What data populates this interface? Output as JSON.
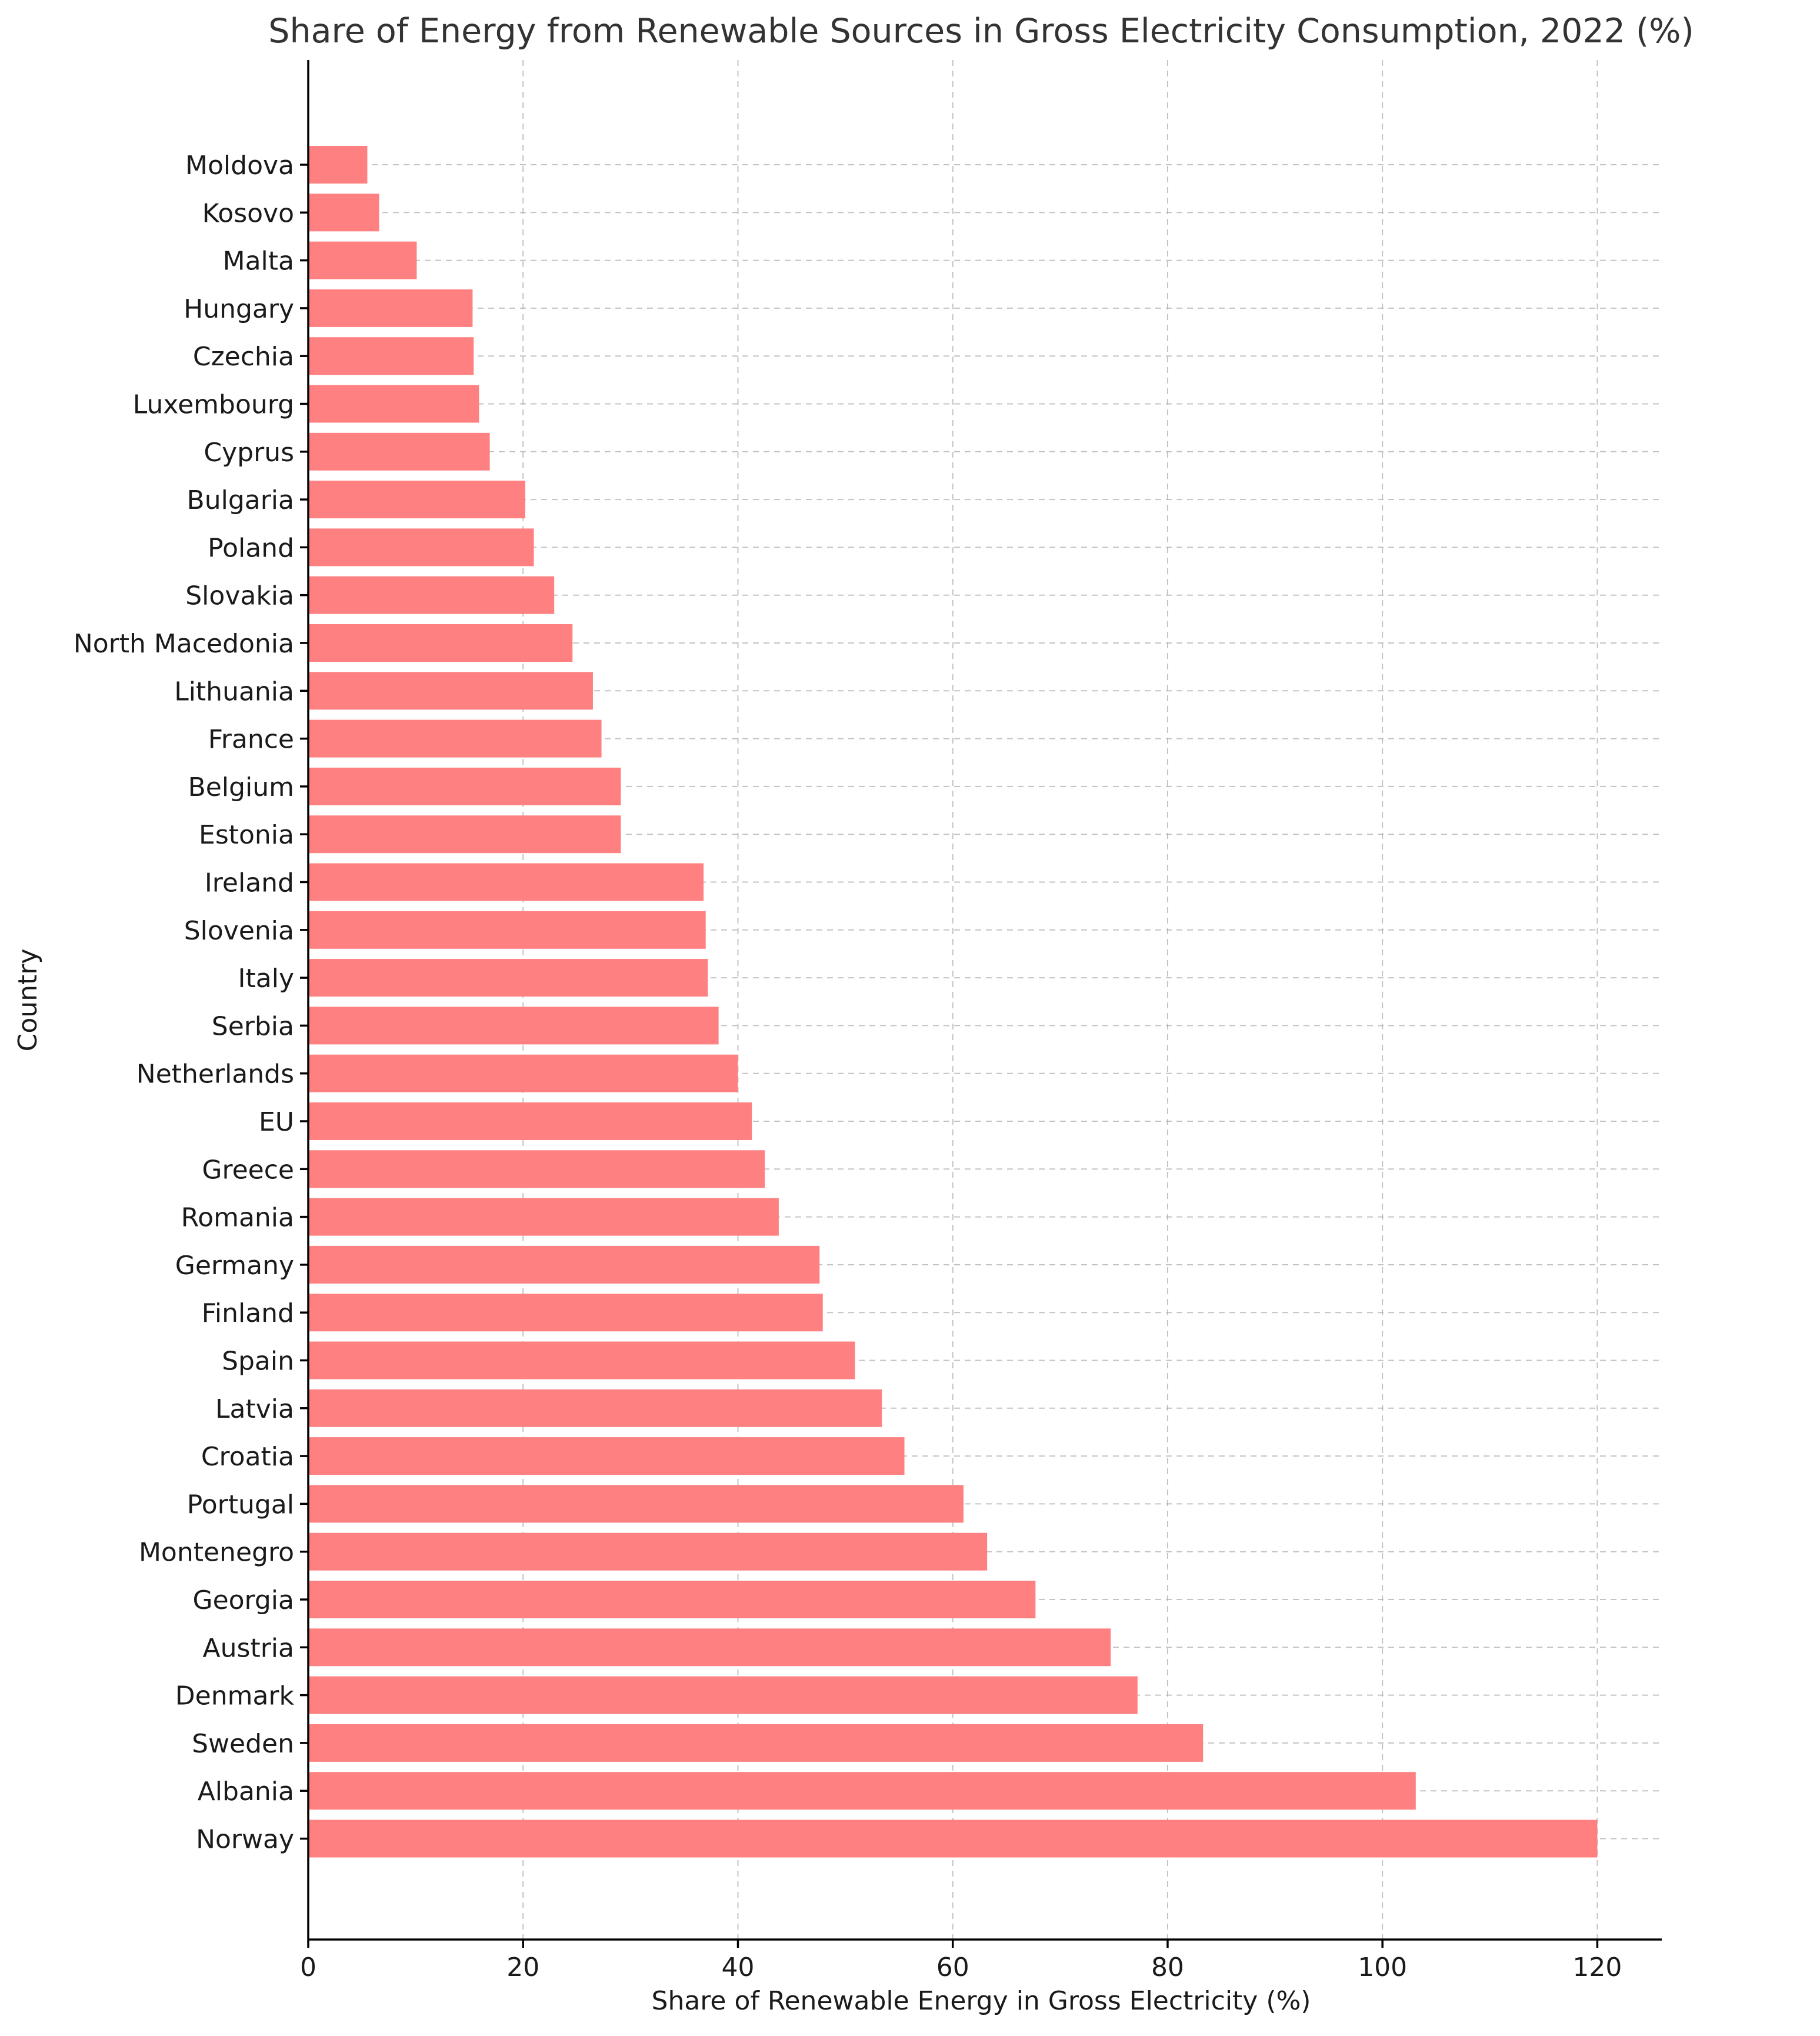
{
  "chart_data": {
    "type": "bar",
    "orientation": "horizontal",
    "title": "Share of Energy from Renewable Sources in Gross Electricity Consumption, 2022 (%)",
    "xlabel": "Share of Renewable Energy in Gross Electricity (%)",
    "ylabel": "Country",
    "xlim": [
      0,
      126
    ],
    "xticks": [
      0,
      20,
      40,
      60,
      80,
      100,
      120
    ],
    "grid": true,
    "bar_color": "#ff8080",
    "categories": [
      "Moldova",
      "Kosovo",
      "Malta",
      "Hungary",
      "Czechia",
      "Luxembourg",
      "Cyprus",
      "Bulgaria",
      "Poland",
      "Slovakia",
      "North Macedonia",
      "Lithuania",
      "France",
      "Belgium",
      "Estonia",
      "Ireland",
      "Slovenia",
      "Italy",
      "Serbia",
      "Netherlands",
      "EU",
      "Greece",
      "Romania",
      "Germany",
      "Finland",
      "Spain",
      "Latvia",
      "Croatia",
      "Portugal",
      "Montenegro",
      "Georgia",
      "Austria",
      "Denmark",
      "Sweden",
      "Albania",
      "Norway"
    ],
    "values": [
      5.5,
      6.6,
      10.1,
      15.3,
      15.4,
      15.9,
      16.9,
      20.2,
      21.0,
      22.9,
      24.6,
      26.5,
      27.3,
      29.1,
      29.1,
      36.8,
      37.0,
      37.2,
      38.2,
      40.0,
      41.3,
      42.5,
      43.8,
      47.6,
      47.9,
      50.9,
      53.4,
      55.5,
      61.0,
      63.2,
      67.7,
      74.7,
      77.2,
      83.3,
      103.1,
      120.0
    ]
  }
}
